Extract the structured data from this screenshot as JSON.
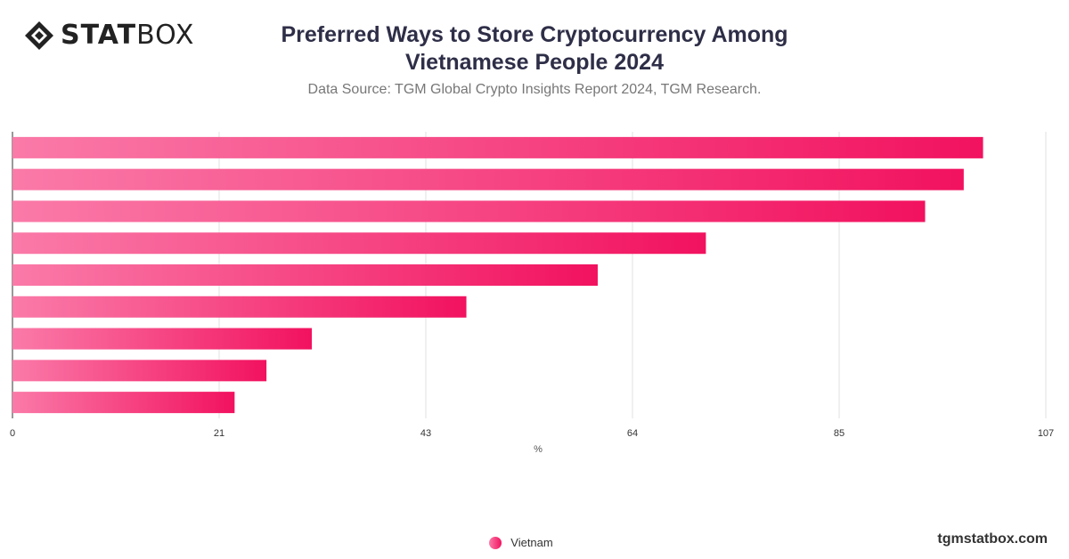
{
  "brand": {
    "logo_bold": "STAT",
    "logo_light": "BOX"
  },
  "header": {
    "title_line1": "Preferred Ways to Store Cryptocurrency Among",
    "title_line2": "Vietnamese People 2024",
    "subtitle": "Data Source: TGM Global Crypto Insights Report 2024, TGM Research."
  },
  "footer": {
    "site": "tgmstatbox.com"
  },
  "colors": {
    "bar_start": "#fa7aa8",
    "bar_end": "#f2125f",
    "grid": "#e0e0e0",
    "axis": "#333333"
  },
  "chart_data": {
    "type": "bar",
    "orientation": "horizontal",
    "categories": [
      "",
      "",
      "",
      "",
      "",
      "",
      "",
      "",
      ""
    ],
    "series": [
      {
        "name": "Vietnam",
        "values": [
          100.5,
          98.5,
          94.5,
          71.8,
          60.6,
          47.0,
          31.0,
          26.3,
          23.0
        ]
      }
    ],
    "xlabel": "%",
    "xlim": [
      0,
      107
    ],
    "xticks": [
      "0",
      "21",
      "43",
      "64",
      "85",
      "107"
    ],
    "grid": true,
    "legend": "bottom-center"
  }
}
